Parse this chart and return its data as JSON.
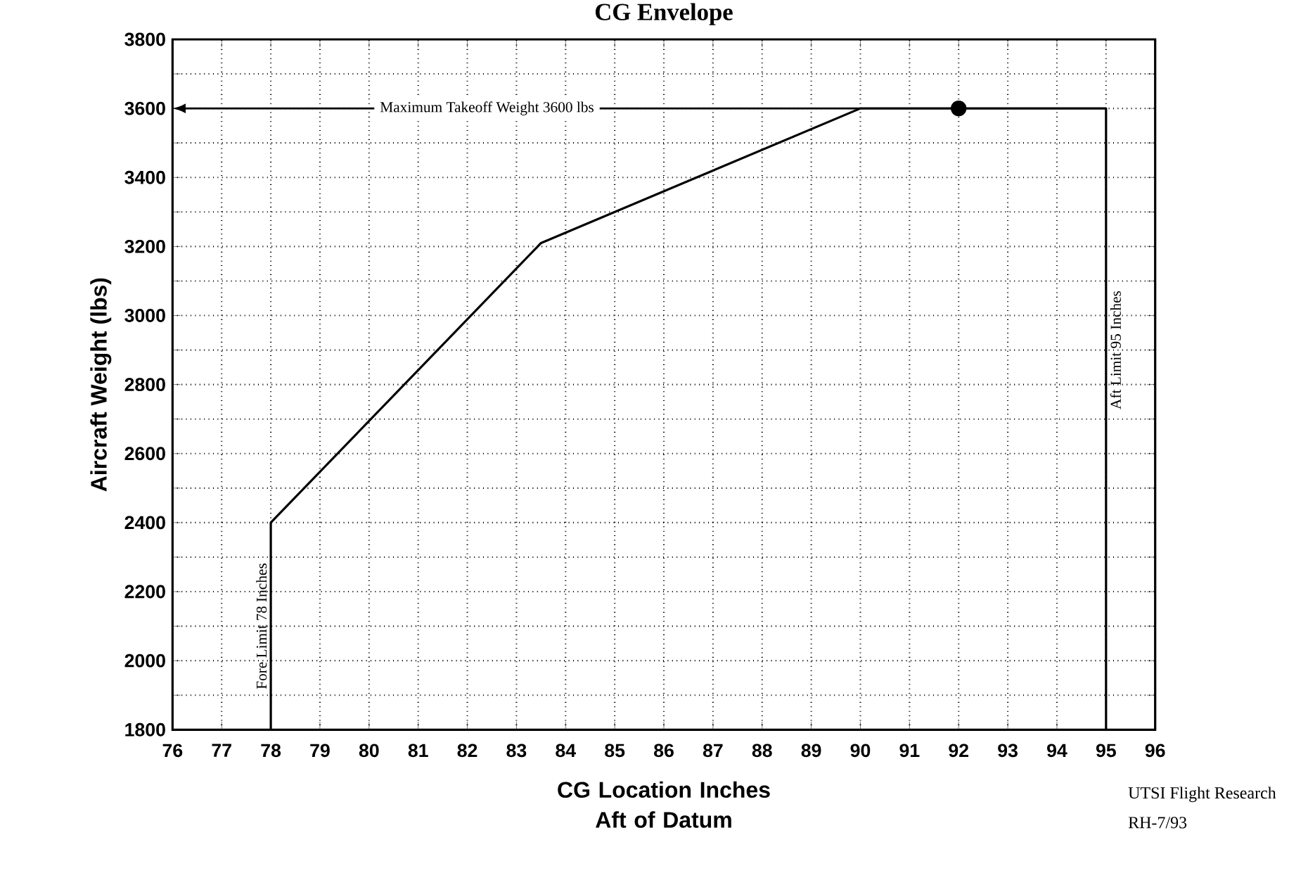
{
  "chart_data": {
    "type": "line",
    "title": "CG Envelope",
    "xlabel": "CG Location Inches Aft of Datum",
    "ylabel": "Aircraft Weight (lbs)",
    "xlim": [
      76,
      96
    ],
    "ylim": [
      1800,
      3800
    ],
    "xticks": [
      76,
      77,
      78,
      79,
      80,
      81,
      82,
      83,
      84,
      85,
      86,
      87,
      88,
      89,
      90,
      91,
      92,
      93,
      94,
      95,
      96
    ],
    "yticks": [
      1800,
      {
        "value": 1900,
        "label": null
      },
      2000,
      {
        "value": 2100,
        "label": null
      },
      2200,
      {
        "value": 2300,
        "label": null
      },
      2400,
      {
        "value": 2500,
        "label": null
      },
      2600,
      {
        "value": 2700,
        "label": null
      },
      2800,
      {
        "value": 2900,
        "label": null
      },
      3000,
      {
        "value": 3100,
        "label": null
      },
      3200,
      {
        "value": 3300,
        "label": null
      },
      3400,
      {
        "value": 3500,
        "label": null
      },
      3600,
      {
        "value": 3700,
        "label": null
      },
      3800
    ],
    "grid": true,
    "series": [
      {
        "color": "#000000",
        "x": [
          78,
          78,
          83.5,
          90,
          95,
          95
        ],
        "values": [
          1800,
          2400,
          3210,
          3600,
          3600,
          1800
        ]
      },
      {
        "type": "scatter",
        "color": "#000000",
        "marker": "circle",
        "x": [
          92
        ],
        "values": [
          3600
        ]
      }
    ],
    "ref_lines": [
      {
        "axis": "y",
        "value": 3600,
        "label": "Maximum Takeoff Weight 3600 lbs",
        "color": "#000000"
      }
    ],
    "annotations": [
      {
        "text": "Fore Limit 78 Inches",
        "x": 78,
        "y": 2100
      },
      {
        "text": "Aft Limit 95 Inches",
        "x": 95,
        "y": 2900
      },
      "UTSI Flight Research",
      "RH-7/93"
    ]
  }
}
